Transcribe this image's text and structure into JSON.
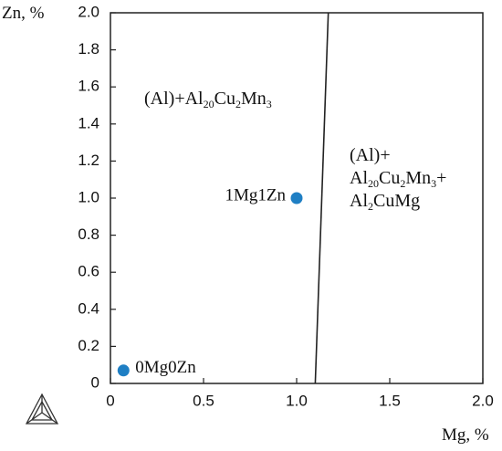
{
  "chart_data": {
    "type": "scatter",
    "x_label": "Mg, %",
    "y_label": "Zn, %",
    "xlim": [
      0,
      2.0
    ],
    "ylim": [
      0,
      2.0
    ],
    "xticks": [
      0,
      0.5,
      {
        "value": 1.0,
        "label": "1.0"
      },
      1.5,
      {
        "value": 2.0,
        "label": "2.0"
      }
    ],
    "yticks": [
      0,
      0.2,
      0.4,
      0.6,
      0.8,
      {
        "value": 1.0,
        "label": "1.0"
      },
      1.2,
      1.4,
      1.6,
      1.8,
      {
        "value": 2.0,
        "label": "2.0"
      }
    ],
    "points": {
      "x": [
        0.07,
        1.0
      ],
      "y": [
        0.07,
        1.0
      ],
      "labels": [
        "0Mg0Zn",
        "1Mg1Zn"
      ],
      "color": "#1f7fc4"
    },
    "boundary": {
      "x": [
        1.1,
        1.17
      ],
      "y": [
        0,
        2.0
      ],
      "color": "#222222"
    },
    "annotations": [
      {
        "lines": [
          [
            {
              "text": "(Al)+Al",
              "sub": false
            },
            {
              "text": "20",
              "sub": true
            },
            {
              "text": "Cu",
              "sub": false
            },
            {
              "text": "2",
              "sub": true
            },
            {
              "text": "Mn",
              "sub": false
            },
            {
              "text": "3",
              "sub": true
            }
          ]
        ]
      },
      {
        "lines": [
          [
            {
              "text": "(Al)+",
              "sub": false
            }
          ],
          [
            {
              "text": "Al",
              "sub": false
            },
            {
              "text": "20",
              "sub": true
            },
            {
              "text": "Cu",
              "sub": false
            },
            {
              "text": "2",
              "sub": true
            },
            {
              "text": "Mn",
              "sub": false
            },
            {
              "text": "3",
              "sub": true
            },
            {
              "text": "+",
              "sub": false
            }
          ],
          [
            {
              "text": "Al",
              "sub": false
            },
            {
              "text": "2",
              "sub": true
            },
            {
              "text": "CuMg",
              "sub": false
            }
          ]
        ]
      }
    ]
  }
}
